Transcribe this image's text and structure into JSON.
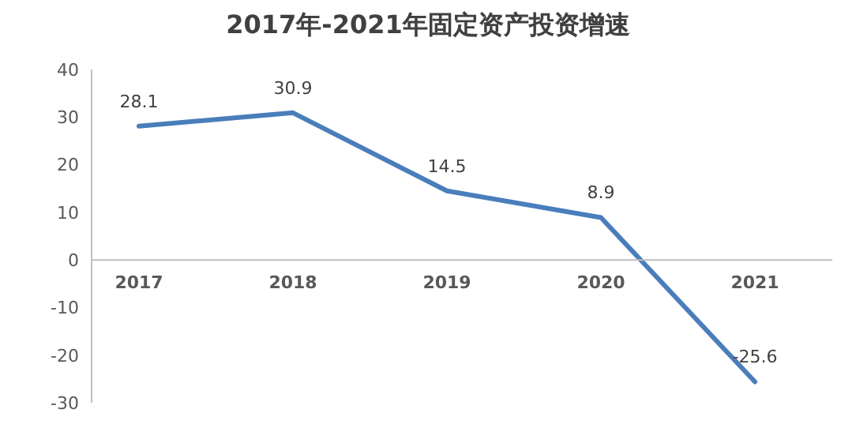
{
  "chart_data": {
    "type": "line",
    "title": "2017年-2021年固定资产投资增速",
    "categories": [
      "2017",
      "2018",
      "2019",
      "2020",
      "2021"
    ],
    "series": [
      {
        "color": "#4a7ebb",
        "values": [
          28.1,
          30.9,
          14.5,
          8.9,
          -25.6
        ]
      }
    ],
    "ylim": [
      -30,
      40
    ],
    "yticks": [
      -30,
      -20,
      -10,
      0,
      10,
      20,
      30,
      40
    ],
    "data_labels": true,
    "grid": false,
    "legend": false,
    "marker": "none",
    "line_style": "solid"
  }
}
